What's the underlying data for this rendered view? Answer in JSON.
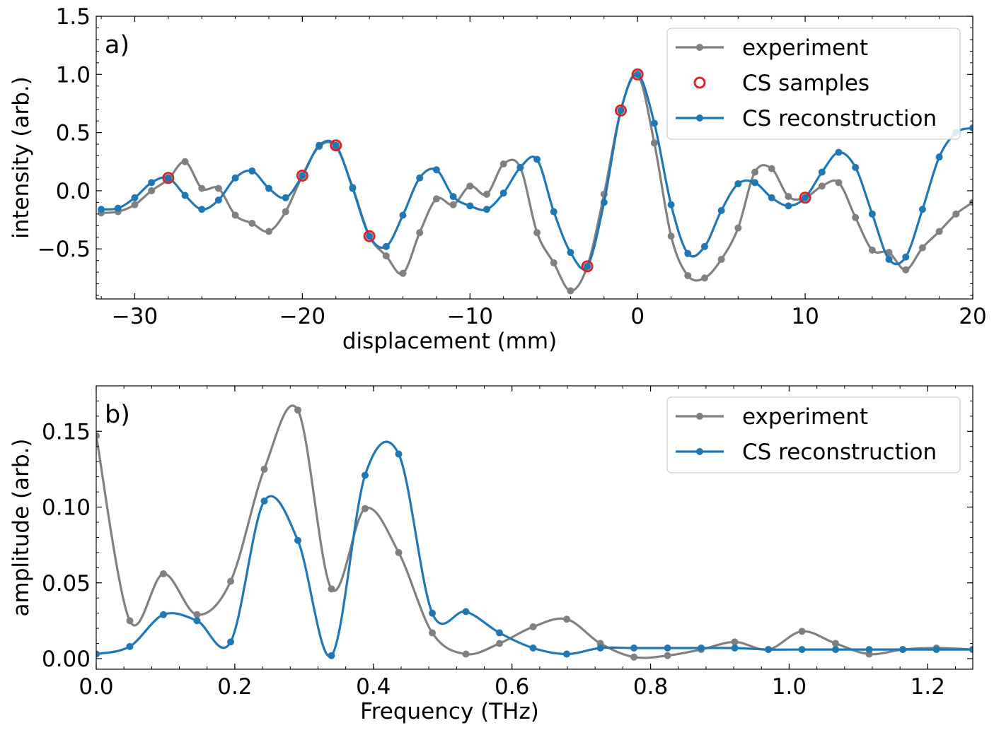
{
  "chart_data": [
    {
      "type": "line",
      "panel_label": "a)",
      "xlabel": "displacement (mm)",
      "ylabel": "intensity (arb.)",
      "xlim": [
        -32.3,
        20
      ],
      "ylim": [
        -0.93,
        1.5
      ],
      "xticks": [
        -30,
        -20,
        -10,
        0,
        10,
        20
      ],
      "xtick_labels": [
        "−30",
        "−20",
        "−10",
        "0",
        "10",
        "20"
      ],
      "yticks": [
        -0.5,
        0.0,
        0.5,
        1.0,
        1.5
      ],
      "ytick_labels": [
        "−0.5",
        "0.0",
        "0.5",
        "1.0",
        "1.5"
      ],
      "legend": {
        "position": "upper-right",
        "entries": [
          "experiment",
          "CS samples",
          "CS reconstruction"
        ]
      },
      "series": [
        {
          "name": "experiment",
          "color": "#808080",
          "marker": "dot",
          "x": [
            -32,
            -31,
            -30,
            -29,
            -28,
            -27,
            -26,
            -25,
            -24,
            -23,
            -22,
            -21,
            -20,
            -19,
            -18,
            -17,
            -16,
            -15,
            -14,
            -13,
            -12,
            -11,
            -10,
            -9,
            -8,
            -7,
            -6,
            -5,
            -4,
            -3,
            -2,
            -1,
            0,
            1,
            2,
            3,
            4,
            5,
            6,
            7,
            8,
            9,
            10,
            11,
            12,
            13,
            14,
            15,
            16,
            17,
            18,
            19,
            20
          ],
          "y": [
            -0.19,
            -0.18,
            -0.12,
            0.0,
            0.1,
            0.25,
            0.02,
            0.02,
            -0.21,
            -0.28,
            -0.35,
            -0.18,
            0.13,
            0.38,
            0.38,
            0.03,
            -0.39,
            -0.56,
            -0.71,
            -0.36,
            -0.07,
            -0.12,
            0.04,
            -0.03,
            0.23,
            0.2,
            -0.36,
            -0.62,
            -0.86,
            -0.65,
            -0.03,
            0.69,
            1.0,
            0.41,
            -0.39,
            -0.73,
            -0.75,
            -0.59,
            -0.32,
            0.16,
            0.19,
            -0.05,
            -0.06,
            0.04,
            0.07,
            -0.23,
            -0.51,
            -0.53,
            -0.68,
            -0.49,
            -0.35,
            -0.2,
            -0.1
          ]
        },
        {
          "name": "CS samples",
          "color": "#d62728",
          "marker": "open-circle",
          "x": [
            -28,
            -20,
            -18,
            -16,
            -3,
            -1,
            0,
            10
          ],
          "y": [
            0.11,
            0.13,
            0.39,
            -0.39,
            -0.65,
            0.69,
            1.0,
            -0.06
          ]
        },
        {
          "name": "CS reconstruction",
          "color": "#1f77b4",
          "marker": "dot",
          "x": [
            -32,
            -31,
            -30,
            -29,
            -28,
            -27,
            -26,
            -25,
            -24,
            -23,
            -22,
            -21,
            -20,
            -19,
            -18,
            -17,
            -16,
            -15,
            -14,
            -13,
            -12,
            -11,
            -10,
            -9,
            -8,
            -7,
            -6,
            -5,
            -4,
            -3,
            -2,
            -1,
            0,
            1,
            2,
            3,
            4,
            5,
            6,
            7,
            8,
            9,
            10,
            11,
            12,
            13,
            14,
            15,
            16,
            17,
            18,
            19,
            20
          ],
          "y": [
            -0.16,
            -0.15,
            -0.06,
            0.07,
            0.11,
            -0.04,
            -0.16,
            -0.08,
            0.11,
            0.17,
            0.02,
            -0.06,
            0.13,
            0.39,
            0.39,
            0.02,
            -0.39,
            -0.48,
            -0.21,
            0.11,
            0.18,
            -0.05,
            -0.13,
            -0.16,
            -0.02,
            0.2,
            0.27,
            -0.18,
            -0.53,
            -0.65,
            -0.1,
            0.69,
            1.0,
            0.58,
            -0.12,
            -0.54,
            -0.48,
            -0.17,
            0.06,
            0.07,
            -0.06,
            -0.13,
            -0.06,
            0.16,
            0.33,
            0.2,
            -0.2,
            -0.59,
            -0.57,
            -0.16,
            0.29,
            0.5,
            0.54
          ]
        }
      ]
    },
    {
      "type": "line",
      "panel_label": "b)",
      "xlabel": "Frequency (THz)",
      "ylabel": "amplitude (arb.)",
      "xlim": [
        0,
        1.265
      ],
      "ylim": [
        -0.007,
        0.18
      ],
      "xticks": [
        0.0,
        0.2,
        0.4,
        0.6,
        0.8,
        1.0,
        1.2
      ],
      "xtick_labels": [
        "0.0",
        "0.2",
        "0.4",
        "0.6",
        "0.8",
        "1.0",
        "1.2"
      ],
      "yticks": [
        0.0,
        0.05,
        0.1,
        0.15
      ],
      "ytick_labels": [
        "0.00",
        "0.05",
        "0.10",
        "0.15"
      ],
      "legend": {
        "position": "upper-right",
        "entries": [
          "experiment",
          "CS reconstruction"
        ]
      },
      "series": [
        {
          "name": "experiment",
          "color": "#808080",
          "marker": "dot",
          "x": [
            0.0,
            0.0485,
            0.097,
            0.1455,
            0.194,
            0.2425,
            0.291,
            0.3395,
            0.388,
            0.4365,
            0.485,
            0.5335,
            0.582,
            0.6305,
            0.679,
            0.7275,
            0.776,
            0.8245,
            0.873,
            0.9215,
            0.97,
            1.0185,
            1.067,
            1.1155,
            1.164,
            1.2125,
            1.265
          ],
          "y": [
            0.147,
            0.025,
            0.056,
            0.029,
            0.051,
            0.125,
            0.164,
            0.046,
            0.099,
            0.07,
            0.017,
            0.003,
            0.01,
            0.021,
            0.026,
            0.01,
            0.001,
            0.002,
            0.006,
            0.011,
            0.006,
            0.018,
            0.01,
            0.003,
            0.006,
            0.007,
            0.006
          ]
        },
        {
          "name": "CS reconstruction",
          "color": "#1f77b4",
          "marker": "dot",
          "x": [
            0.0,
            0.0485,
            0.097,
            0.1455,
            0.194,
            0.2425,
            0.291,
            0.3395,
            0.388,
            0.4365,
            0.485,
            0.5335,
            0.582,
            0.6305,
            0.679,
            0.7275,
            0.776,
            0.8245,
            0.873,
            0.9215,
            0.97,
            1.0185,
            1.067,
            1.1155,
            1.164,
            1.2125,
            1.265
          ],
          "y": [
            0.003,
            0.008,
            0.029,
            0.025,
            0.011,
            0.104,
            0.078,
            0.002,
            0.121,
            0.135,
            0.03,
            0.031,
            0.017,
            0.007,
            0.003,
            0.007,
            0.007,
            0.007,
            0.007,
            0.007,
            0.006,
            0.006,
            0.006,
            0.006,
            0.006,
            0.006,
            0.006
          ]
        }
      ]
    }
  ]
}
